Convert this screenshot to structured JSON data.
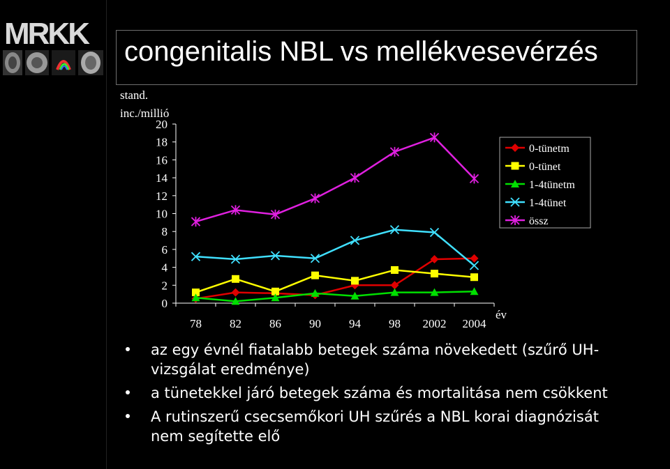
{
  "logo": {
    "text": "MRKK"
  },
  "title": "congenitalis NBL vs mellékvesevérzés",
  "y_axis_label_lines": [
    "stand.",
    "inc./millió"
  ],
  "x_axis_unit": "év",
  "colors": {
    "background": "#000000",
    "text": "#ffffff"
  },
  "chart_data": {
    "type": "line",
    "categories": [
      "78",
      "82",
      "86",
      "90",
      "94",
      "98",
      "2002",
      "2004"
    ],
    "ylim": [
      0,
      20
    ],
    "yticks": [
      0,
      2,
      4,
      6,
      8,
      10,
      12,
      14,
      16,
      18,
      20
    ],
    "xlabel": "év",
    "ylabel": "stand. inc./millió",
    "legend_position": "right",
    "grid": false,
    "series": [
      {
        "name": "0-tünetm",
        "color": "#e00000",
        "marker": "diamond",
        "values": [
          0.5,
          1.2,
          1.1,
          0.9,
          2.0,
          2.0,
          4.9,
          5.0
        ]
      },
      {
        "name": "0-tünet",
        "color": "#ffff00",
        "marker": "square",
        "values": [
          1.2,
          2.7,
          1.3,
          3.1,
          2.5,
          3.7,
          3.3,
          2.9
        ]
      },
      {
        "name": "1-4tünetm",
        "color": "#00e000",
        "marker": "triangle",
        "values": [
          0.6,
          0.2,
          0.6,
          1.1,
          0.8,
          1.2,
          1.2,
          1.3
        ]
      },
      {
        "name": "1-4tünet",
        "color": "#40e0ff",
        "marker": "x",
        "values": [
          5.2,
          4.9,
          5.3,
          5.0,
          7.0,
          8.2,
          7.9,
          4.2
        ]
      },
      {
        "name": "össz",
        "color": "#e020e0",
        "marker": "star",
        "values": [
          9.1,
          10.4,
          9.9,
          11.7,
          14.0,
          16.9,
          18.5,
          13.9
        ]
      }
    ]
  },
  "bullets": [
    {
      "line1": "az egy évnél fiatalabb betegek száma növekedett (szűrő UH-",
      "line2": "vizsgálat eredménye)"
    },
    {
      "line1": "a tünetekkel járó betegek száma és mortalitása nem csökkent",
      "line2": ""
    },
    {
      "line1": "A rutinszerű csecsemőkori UH szűrés a NBL korai diagnózisát",
      "line2": "nem segítette elő"
    }
  ]
}
